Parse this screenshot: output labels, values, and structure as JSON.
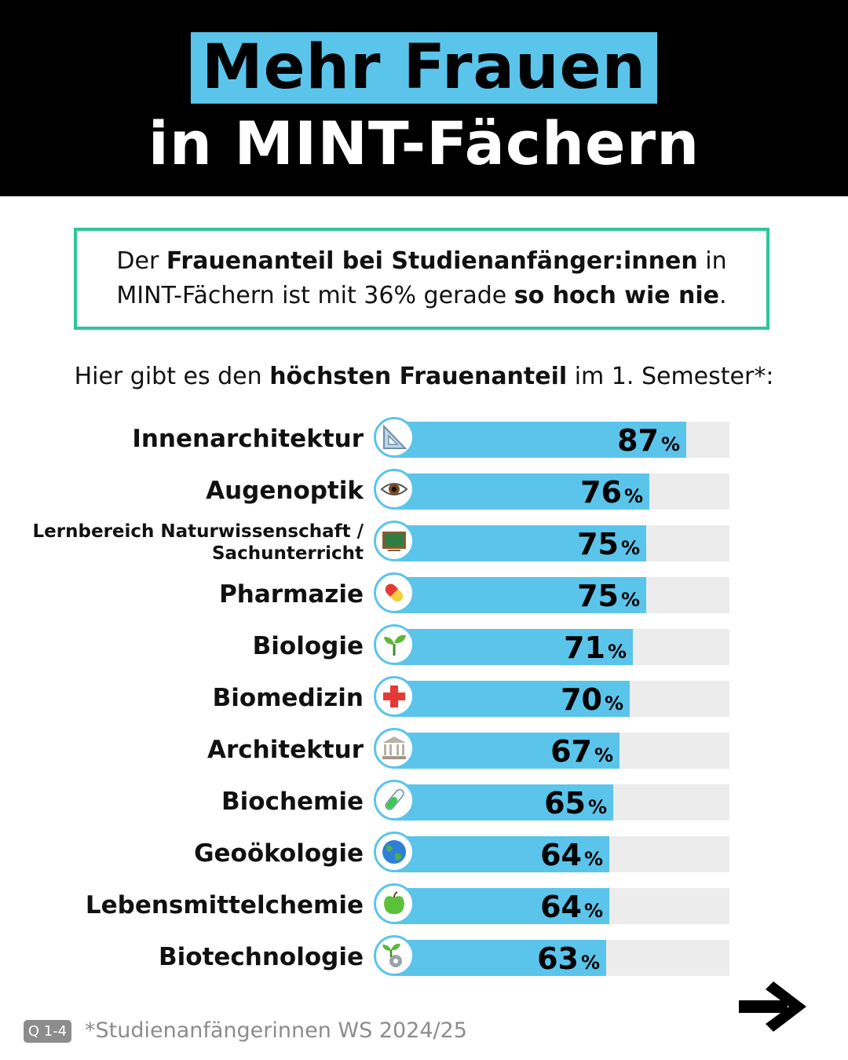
{
  "header": {
    "title_line1": "Mehr Frauen",
    "title_line2": "in MINT-Fächern"
  },
  "info_box": {
    "p1": "Der ",
    "b1": "Frauenanteil bei Studienanfänger:innen",
    "p2": " in MINT-Fächern ist mit 36% gerade ",
    "b2": "so hoch wie nie",
    "p3": "."
  },
  "subtitle": {
    "p1": "Hier gibt es den ",
    "b1": "höchsten Frauenanteil",
    "p2": " im 1. Semester*:"
  },
  "chart_data": {
    "type": "bar",
    "orientation": "horizontal",
    "unit": "%",
    "xlim": [
      0,
      100
    ],
    "categories": [
      "Innenarchitektur",
      "Augenoptik",
      "Lernbereich Naturwissenschaft / Sachunterricht",
      "Pharmazie",
      "Biologie",
      "Biomedizin",
      "Architektur",
      "Biochemie",
      "Geoökologie",
      "Lebensmittelchemie",
      "Biotechnologie"
    ],
    "values": [
      87,
      76,
      75,
      75,
      71,
      70,
      67,
      65,
      64,
      64,
      63
    ],
    "icons": [
      "set-square-icon",
      "eye-icon",
      "chalkboard-icon",
      "pill-icon",
      "seedling-icon",
      "red-cross-icon",
      "classical-building-icon",
      "test-tube-icon",
      "globe-icon",
      "green-apple-icon",
      "seedling-gear-icon"
    ],
    "colors": {
      "bar": "#5bc4ea",
      "track": "#ececec"
    }
  },
  "colors": {
    "accent": "#5bc4ea",
    "box_border": "#2cc79a",
    "header_bg": "#000000",
    "muted": "#8c8c8c"
  },
  "footer": {
    "badge": "Q 1-4",
    "note": "*Studienanfängerinnen WS 2024/25",
    "next_icon": "arrow-right-icon"
  }
}
